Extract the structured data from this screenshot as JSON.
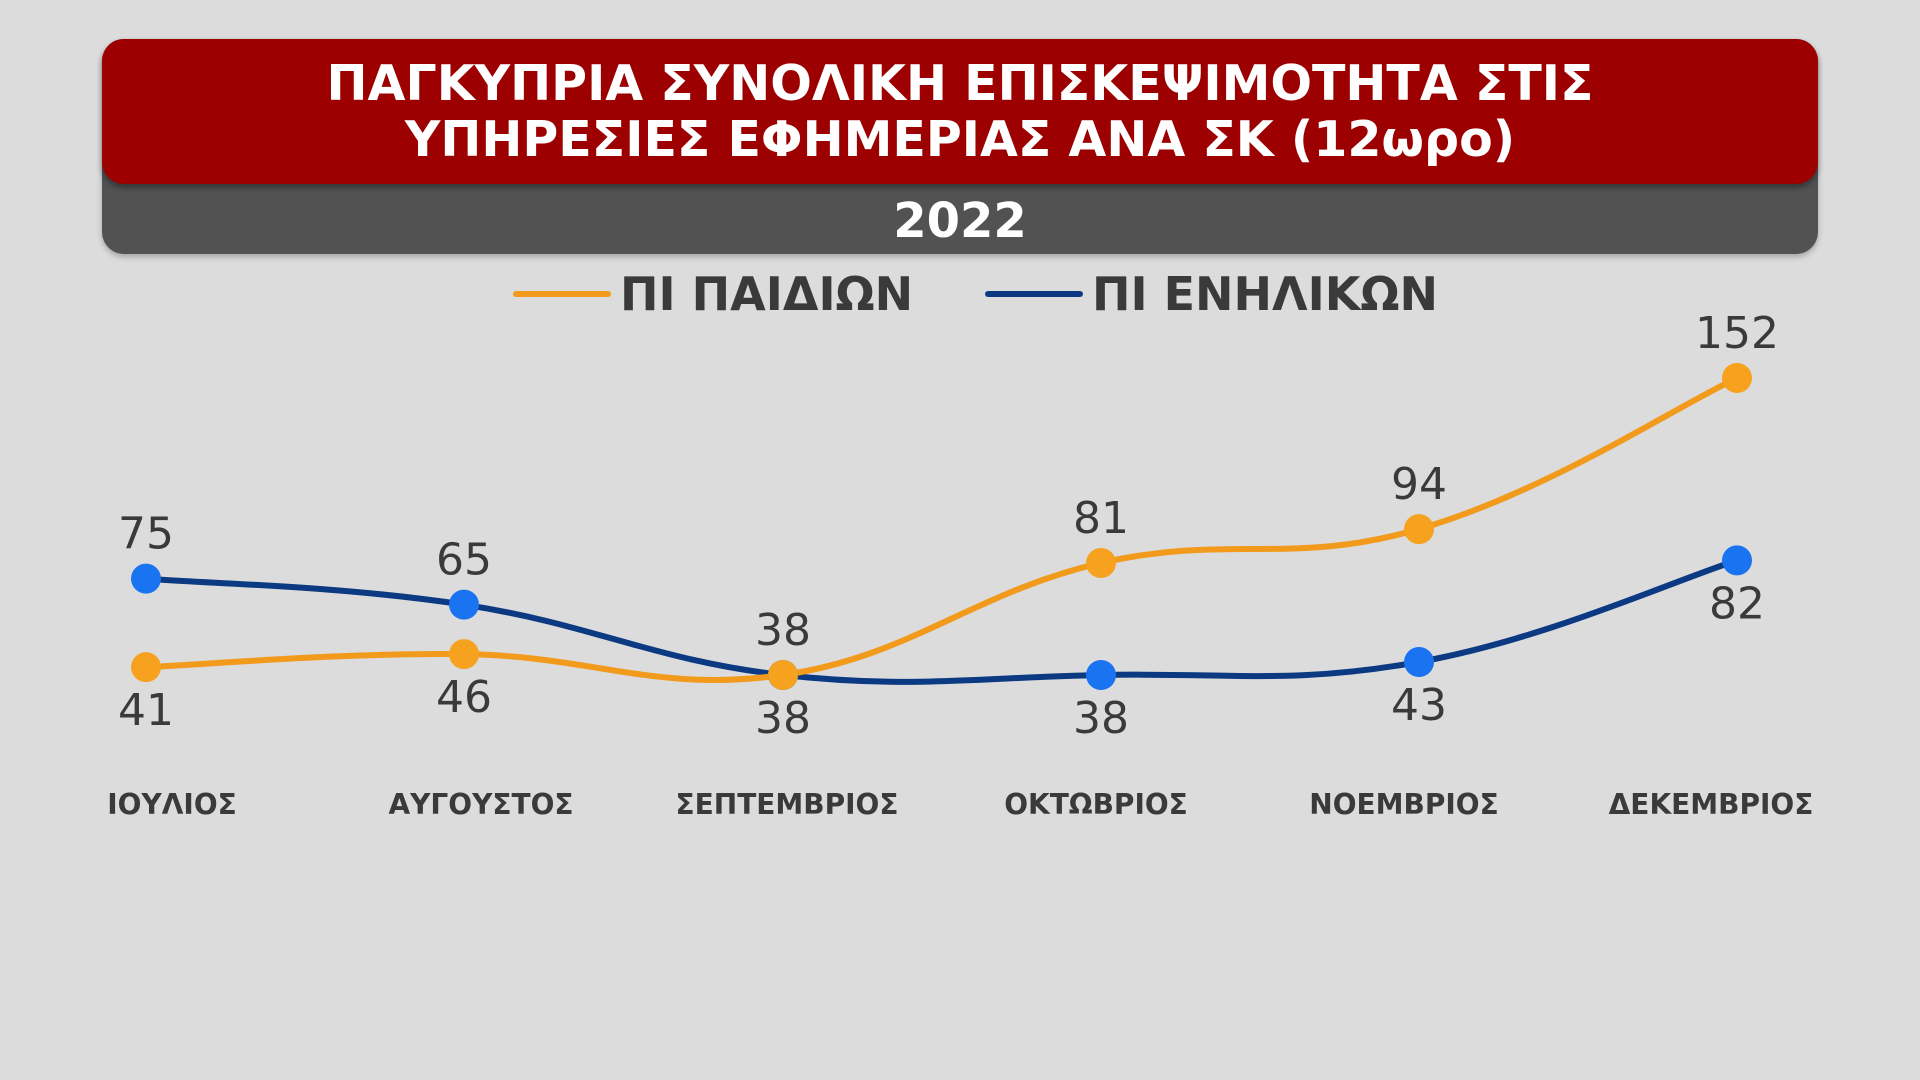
{
  "header": {
    "title_line1": "ΠΑΓΚΥΠΡΙΑ ΣΥΝΟΛΙΚΗ ΕΠΙΣΚΕΨΙΜΟΤΗΤΑ ΣΤΙΣ",
    "title_line2": "ΥΠΗΡΕΣΙΕΣ ΕΦΗΜΕΡΙΑΣ ΑΝΑ ΣΚ (12ωρο)",
    "year": "2022"
  },
  "colors": {
    "title_bg": "#9d0000",
    "year_bg": "#525252",
    "children_line": "#f29a1c",
    "children_marker": "#f7a21f",
    "adults_line": "#0b3a82",
    "adults_marker": "#1a73f0",
    "text": "#3a3a3a",
    "background": "#dcdcdc"
  },
  "chart_data": {
    "type": "line",
    "title": "ΠΑΓΚΥΠΡΙΑ ΣΥΝΟΛΙΚΗ ΕΠΙΣΚΕΨΙΜΟΤΗΤΑ ΣΤΙΣ ΥΠΗΡΕΣΙΕΣ ΕΦΗΜΕΡΙΑΣ ΑΝΑ ΣΚ (12ωρο)",
    "subtitle": "2022",
    "categories": [
      "ΙΟΥΛΙΟΣ",
      "ΑΥΓΟΥΣΤΟΣ",
      "ΣΕΠΤΕΜΒΡΙΟΣ",
      "ΟΚΤΩΒΡΙΟΣ",
      "ΝΟΕΜΒΡΙΟΣ",
      "ΔΕΚΕΜΒΡΙΟΣ"
    ],
    "series": [
      {
        "name": "ΠΙ ΠΑΙΔΙΩΝ",
        "values": [
          41,
          46,
          38,
          81,
          94,
          152
        ],
        "label_position": [
          "below",
          "below",
          "above",
          "above",
          "above",
          "above"
        ]
      },
      {
        "name": "ΠΙ ΕΝΗΛΙΚΩΝ",
        "values": [
          75,
          65,
          38,
          38,
          43,
          82
        ],
        "label_position": [
          "above",
          "above",
          "below",
          "below",
          "below",
          "below"
        ]
      }
    ],
    "legend": "top-center",
    "grid": false,
    "yaxis_visible": false,
    "xlabel": "",
    "ylabel": ""
  }
}
